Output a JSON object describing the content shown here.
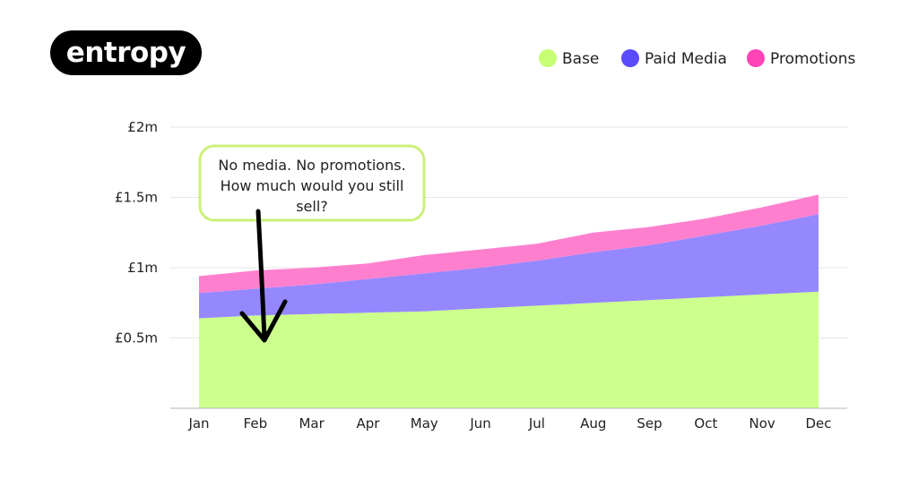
{
  "logo": {
    "text": "entropy"
  },
  "chart_data": {
    "type": "area",
    "stacked": true,
    "categories": [
      "Jan",
      "Feb",
      "Mar",
      "Apr",
      "May",
      "Jun",
      "Jul",
      "Aug",
      "Sep",
      "Oct",
      "Nov",
      "Dec"
    ],
    "y_ticks": [
      "£0.5m",
      "£1m",
      "£1.5m",
      "£2m"
    ],
    "y_tick_values": [
      0.5,
      1,
      1.5,
      2
    ],
    "ylim": [
      0,
      2
    ],
    "grid": true,
    "legend_position": "top-right",
    "series": [
      {
        "name": "Base",
        "color": "#ccff8c",
        "legend_color": "#c6ff73",
        "values": [
          0.64,
          0.66,
          0.67,
          0.68,
          0.69,
          0.71,
          0.73,
          0.75,
          0.77,
          0.79,
          0.81,
          0.83
        ]
      },
      {
        "name": "Paid Media",
        "color": "#9588ff",
        "legend_color": "#5a4bff",
        "values": [
          0.18,
          0.19,
          0.21,
          0.24,
          0.27,
          0.29,
          0.32,
          0.36,
          0.39,
          0.44,
          0.49,
          0.55
        ]
      },
      {
        "name": "Promotions",
        "color": "#ff7fcf",
        "legend_color": "#ff44b8",
        "values": [
          0.12,
          0.13,
          0.12,
          0.11,
          0.13,
          0.13,
          0.12,
          0.14,
          0.13,
          0.12,
          0.13,
          0.14
        ]
      }
    ],
    "annotation": {
      "lines": [
        "No media. No promotions.",
        "How much would you still",
        "sell?"
      ],
      "border_color": "#ccf07a",
      "arrow_color": "#000000"
    }
  }
}
